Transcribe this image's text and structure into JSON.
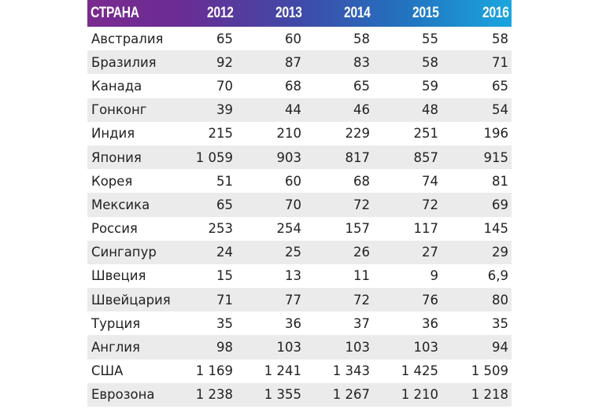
{
  "table": {
    "headers": [
      "СТРАНА",
      "2012",
      "2013",
      "2014",
      "2015",
      "2016"
    ],
    "rows": [
      [
        "Австралия",
        "65",
        "60",
        "58",
        "55",
        "58"
      ],
      [
        "Бразилия",
        "92",
        "87",
        "83",
        "58",
        "71"
      ],
      [
        "Канада",
        "70",
        "68",
        "65",
        "59",
        "65"
      ],
      [
        "Гонконг",
        "39",
        "44",
        "46",
        "48",
        "54"
      ],
      [
        "Индия",
        "215",
        "210",
        "229",
        "251",
        "196"
      ],
      [
        "Япония",
        "1 059",
        "903",
        "817",
        "857",
        "915"
      ],
      [
        "Корея",
        "51",
        "60",
        "68",
        "74",
        "81"
      ],
      [
        "Мексика",
        "65",
        "70",
        "72",
        "72",
        "69"
      ],
      [
        "Россия",
        "253",
        "254",
        "157",
        "117",
        "145"
      ],
      [
        "Сингапур",
        "24",
        "25",
        "26",
        "27",
        "29"
      ],
      [
        "Швеция",
        "15",
        "13",
        "11",
        "9",
        "6,9"
      ],
      [
        "Швейцария",
        "71",
        "77",
        "72",
        "76",
        "80"
      ],
      [
        "Турция",
        "35",
        "36",
        "37",
        "36",
        "35"
      ],
      [
        "Англия",
        "98",
        "103",
        "103",
        "103",
        "94"
      ],
      [
        "США",
        "1 169",
        "1 241",
        "1 343",
        "1 425",
        "1 509"
      ],
      [
        "Еврозона",
        "1 238",
        "1 355",
        "1 267",
        "1 210",
        "1 218"
      ]
    ]
  },
  "colors": {
    "header_gradient_start": "#7a2a8e",
    "header_gradient_end": "#1aa6df",
    "stripe": "#ebebeb",
    "text": "#222222"
  }
}
